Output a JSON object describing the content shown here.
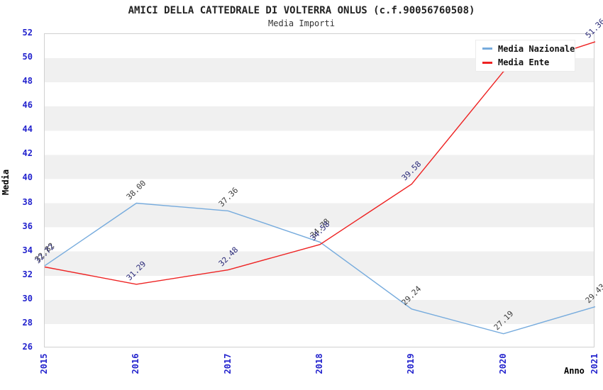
{
  "header": {
    "title": "AMICI DELLA CATTEDRALE DI VOLTERRA ONLUS (c.f.90056760508)",
    "subtitle": "Media Importi"
  },
  "colors": {
    "tick_label": "#2222cd",
    "axis_title": "#000000",
    "plot_border": "#d0d0d0",
    "band_gray": "#f0f0f0",
    "background": "#ffffff",
    "legend_border": "#ececec",
    "media_nazionale": "#76abdd",
    "media_ente": "#ee2222"
  },
  "chart_data": {
    "type": "line",
    "x": [
      "2015",
      "2016",
      "2017",
      "2018",
      "2019",
      "2020",
      "2021"
    ],
    "series": [
      {
        "name": "Media Nazionale",
        "color": "#76abdd",
        "label_color": "#3c3c3c",
        "values": [
          32.82,
          38.0,
          37.36,
          34.78,
          29.24,
          27.19,
          29.43
        ],
        "labels": [
          "32.82",
          "38.00",
          "37.36",
          "34.78",
          "29.24",
          "27.19",
          "29.43"
        ],
        "label_visible": [
          true,
          true,
          true,
          true,
          true,
          true,
          true
        ]
      },
      {
        "name": "Media Ente",
        "color": "#ee2222",
        "label_color": "#2a2a78",
        "values": [
          32.72,
          31.29,
          32.48,
          34.58,
          39.58,
          48.9,
          51.36
        ],
        "labels": [
          "32.72",
          "31.29",
          "32.48",
          "34.58",
          "39.58",
          "48.90",
          "51.36"
        ],
        "label_visible": [
          true,
          true,
          true,
          true,
          true,
          false,
          true
        ]
      }
    ],
    "xlabel": "Anno",
    "ylabel": "Media",
    "ylim": [
      26,
      52
    ],
    "ytick_step": 2,
    "legend_position": "top-right",
    "bands": true,
    "grid": "horizontal-bands",
    "note": "red 2020 value estimated from pixels; its label is hidden behind the legend box"
  }
}
